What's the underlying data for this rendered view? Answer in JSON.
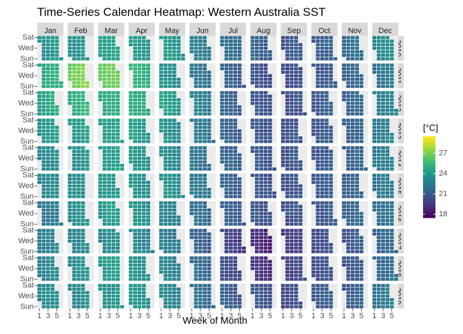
{
  "chart_data": {
    "type": "heatmap",
    "title": "Time-Series Calendar Heatmap: Western Australia SST",
    "xlabel": "Week of Month",
    "ylabel": "",
    "x_tick_labels": [
      "1",
      "3",
      "5"
    ],
    "y_tick_labels": [
      "Sat",
      "Wed",
      "Sun"
    ],
    "months": [
      "Jan",
      "Feb",
      "Mar",
      "Apr",
      "May",
      "Jun",
      "Jul",
      "Aug",
      "Sep",
      "Oct",
      "Nov",
      "Dec"
    ],
    "years": [
      "2010",
      "2011",
      "2012",
      "2013",
      "2014",
      "2015",
      "2016",
      "2017",
      "2018",
      "2019"
    ],
    "legend": {
      "title": "[°C]",
      "ticks": [
        18,
        21,
        24,
        27
      ],
      "range": [
        17.5,
        29.5
      ],
      "position": "right"
    },
    "colors": {
      "panel_background": "#ebebeb",
      "strip_background": "#d9d9d9",
      "grid": "#ffffff",
      "palette": "viridis"
    },
    "monthly_mean_sst": [
      [
        23.6,
        23.5,
        24.3,
        23.9,
        23.8,
        22.7,
        21.8,
        21.2,
        20.6,
        21.0,
        21.7,
        23.2
      ],
      [
        24.8,
        27.0,
        26.8,
        25.2,
        23.5,
        22.1,
        21.0,
        20.4,
        20.2,
        20.7,
        21.2,
        22.2
      ],
      [
        24.3,
        25.0,
        25.0,
        24.8,
        24.2,
        22.7,
        21.2,
        20.6,
        20.4,
        20.8,
        21.3,
        22.8
      ],
      [
        23.8,
        24.0,
        24.3,
        24.1,
        23.3,
        22.2,
        21.2,
        20.6,
        20.4,
        20.7,
        21.2,
        22.6
      ],
      [
        23.2,
        23.5,
        24.0,
        23.8,
        23.2,
        22.1,
        21.2,
        20.7,
        20.5,
        20.7,
        21.3,
        22.5
      ],
      [
        23.2,
        23.3,
        23.8,
        23.6,
        23.4,
        22.3,
        21.2,
        20.6,
        20.5,
        20.7,
        21.2,
        22.3
      ],
      [
        22.4,
        23.4,
        23.8,
        23.5,
        22.8,
        21.8,
        21.1,
        20.6,
        20.4,
        20.7,
        21.3,
        21.9
      ],
      [
        22.6,
        22.8,
        23.2,
        23.0,
        22.4,
        21.0,
        19.7,
        18.8,
        19.6,
        20.2,
        20.8,
        21.4
      ],
      [
        23.0,
        23.4,
        24.0,
        23.6,
        22.8,
        21.5,
        20.2,
        19.2,
        19.8,
        20.4,
        20.7,
        21.6
      ],
      [
        23.2,
        23.2,
        23.6,
        23.8,
        22.9,
        21.8,
        20.9,
        20.5,
        20.2,
        20.8,
        21.1,
        22.4
      ]
    ]
  }
}
